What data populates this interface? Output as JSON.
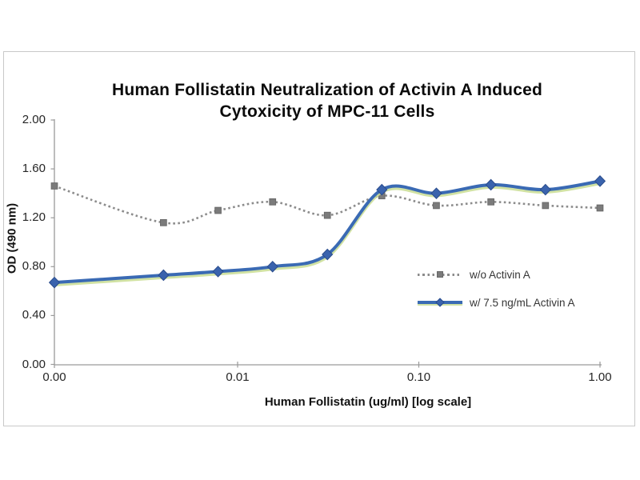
{
  "chart_data": {
    "type": "line",
    "title": "Human Follistatin Neutralization of Activin A Induced Cytoxicity of MPC-11 Cells",
    "title_lines": [
      "Human Follistatin Neutralization of Activin A Induced",
      "Cytoxicity of MPC-11 Cells"
    ],
    "xlabel": "Human Follistatin (ug/ml) [log scale]",
    "ylabel": "OD (490 nm)",
    "x_scale": "log",
    "grid": false,
    "legend_position": "inside right",
    "ylim": [
      0,
      2.0
    ],
    "y_ticks": {
      "values": [
        0,
        0.4,
        0.8,
        1.2,
        1.6,
        2.0
      ],
      "labels": [
        "0.00",
        "0.40",
        "0.80",
        "1.20",
        "1.60",
        "2.00"
      ]
    },
    "x_ticks": {
      "values": [
        0,
        0.01,
        0.1,
        1.0
      ],
      "labels": [
        "0.00",
        "0.01",
        "0.10",
        "1.00"
      ]
    },
    "x": [
      0,
      0.0039,
      0.0078,
      0.0156,
      0.0313,
      0.0625,
      0.125,
      0.25,
      0.5,
      1.0
    ],
    "series": [
      {
        "name": "w/o Activin A",
        "style": "dotted",
        "marker": "square",
        "color": "#8c8c8c",
        "marker_color": "#7b7b7b",
        "marker_edge": "#676767",
        "values": [
          1.46,
          1.16,
          1.26,
          1.33,
          1.22,
          1.38,
          1.3,
          1.33,
          1.3,
          1.28
        ]
      },
      {
        "name": "w/ 7.5 ng/mL Activin A",
        "style": "solid",
        "marker": "diamond",
        "color": "#3a6ab4",
        "marker_color": "#3a63ad",
        "marker_edge": "#2a4c8c",
        "glow_color": "#c9dd93",
        "values": [
          0.67,
          0.73,
          0.76,
          0.8,
          0.9,
          1.43,
          1.4,
          1.47,
          1.43,
          1.5
        ]
      }
    ],
    "axis_color": "#9a9a9a",
    "tick_label_color": "#262626"
  }
}
